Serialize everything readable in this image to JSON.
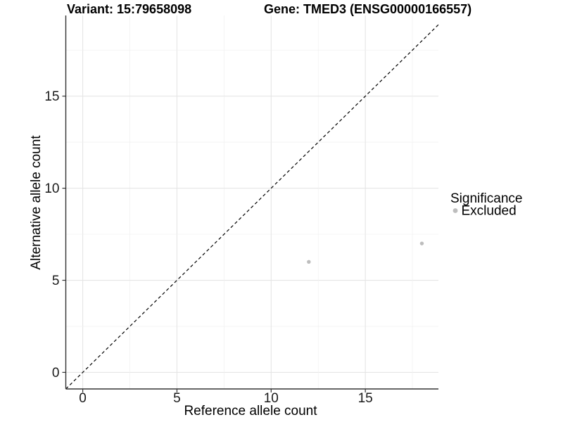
{
  "colors": {
    "background": "#ffffff",
    "axis_line": "#333333",
    "tick_text": "#1a1a1a",
    "point": "#bdbdbd"
  },
  "chart_data": {
    "type": "scatter",
    "title_left": "Variant: 15:79658098",
    "title_right": "Gene: TMED3 (ENSG00000166557)",
    "xlabel": "Reference allele count",
    "ylabel": "Alternative allele count",
    "x_ticks": [
      0,
      5,
      10,
      15
    ],
    "y_ticks": [
      0,
      5,
      10,
      15
    ],
    "xlim": [
      -0.9,
      18.88
    ],
    "ylim": [
      -0.9,
      19.38
    ],
    "grid": {
      "major_every": 5,
      "minor_every": 2.5,
      "color_major": "#e5e5e5",
      "color_minor": "#f0f0f0"
    },
    "reference_line": {
      "type": "identity y=x",
      "style": "dashed",
      "color": "#000000"
    },
    "series": [
      {
        "name": "Excluded",
        "color": "#bdbdbd",
        "marker_radius": 2.7,
        "points": [
          [
            12,
            6
          ],
          [
            18,
            7
          ]
        ]
      }
    ],
    "legend": {
      "title": "Significance",
      "position": "right",
      "entries": [
        {
          "label": "Excluded",
          "color": "#bdbdbd"
        }
      ]
    }
  }
}
